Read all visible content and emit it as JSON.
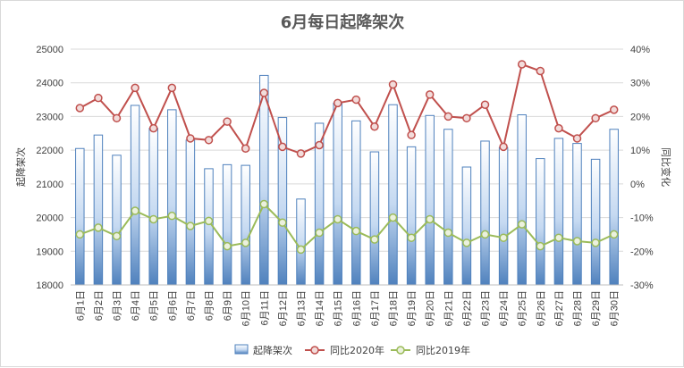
{
  "chart_data": {
    "type": "bar+line",
    "title": "6月每日起降架次",
    "ylabel_left": "起降架次",
    "ylabel_right": "同比变化",
    "categories": [
      "6月1日",
      "6月2日",
      "6月3日",
      "6月4日",
      "6月5日",
      "6月6日",
      "6月7日",
      "6月8日",
      "6月9日",
      "6月10日",
      "6月11日",
      "6月12日",
      "6月13日",
      "6月14日",
      "6月15日",
      "6月16日",
      "6月17日",
      "6月18日",
      "6月19日",
      "6月20日",
      "6月21日",
      "6月22日",
      "6月23日",
      "6月24日",
      "6月25日",
      "6月26日",
      "6月27日",
      "6月28日",
      "6月29日",
      "6月30日"
    ],
    "y_left_ticks": [
      "18000",
      "19000",
      "20000",
      "21000",
      "22000",
      "23000",
      "24000",
      "25000"
    ],
    "y_right_ticks": [
      "-30%",
      "-20%",
      "-10%",
      "0%",
      "10%",
      "20%",
      "30%",
      "40%"
    ],
    "y_left_range": [
      18000,
      25000
    ],
    "y_right_range": [
      -30,
      40
    ],
    "bar_series": {
      "name": "起降架次",
      "values": [
        22050,
        22450,
        21850,
        23330,
        22650,
        23200,
        22300,
        21450,
        21570,
        21550,
        24220,
        22970,
        20550,
        22800,
        23400,
        22870,
        21950,
        23350,
        22100,
        23030,
        22620,
        21500,
        22270,
        22080,
        23050,
        21750,
        22350,
        22200,
        21730,
        22620
      ]
    },
    "line_series": [
      {
        "name": "同比2020年",
        "color": "#c0504d",
        "values": [
          22.5,
          25.5,
          19.5,
          28.5,
          16.5,
          28.5,
          13.5,
          13.0,
          18.5,
          10.5,
          27.0,
          11.0,
          9.0,
          11.5,
          24.0,
          25.0,
          17.0,
          29.5,
          14.5,
          26.5,
          20.0,
          19.5,
          23.5,
          11.0,
          35.5,
          33.5,
          16.5,
          13.5,
          19.5,
          22.0
        ]
      },
      {
        "name": "同比2019年",
        "color": "#9bbb59",
        "values": [
          -15.0,
          -13.0,
          -15.5,
          -8.0,
          -10.5,
          -9.5,
          -12.5,
          -11.0,
          -18.5,
          -17.5,
          -6.0,
          -11.5,
          -19.5,
          -14.5,
          -10.5,
          -14.0,
          -16.5,
          -10.0,
          -16.0,
          -10.5,
          -14.5,
          -17.5,
          -15.0,
          -16.0,
          -12.0,
          -18.5,
          -16.0,
          -17.0,
          -17.5,
          -15.0
        ]
      }
    ],
    "grid": true,
    "legend_position": "bottom"
  }
}
